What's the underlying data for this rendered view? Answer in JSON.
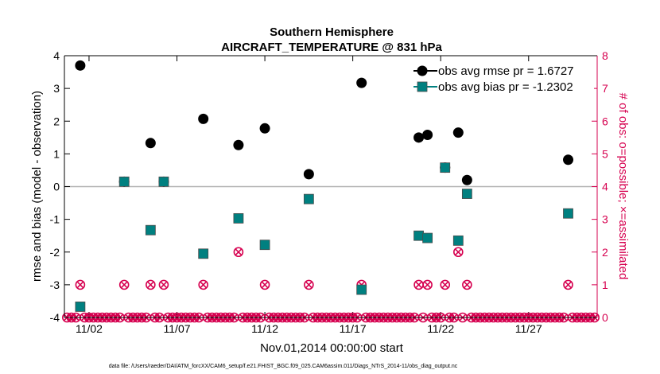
{
  "chart_data": {
    "type": "scatter",
    "title": "Southern Hemisphere",
    "subtitle": "AIRCRAFT_TEMPERATURE @ 831 hPa",
    "xlabel": "Nov.01,2014 00:00:00 start",
    "ylabel": "rmse and bias (model - observation)",
    "ylabel_right": "# of obs: o=possible; ×=assimilated",
    "footnote": "data file: /Users/raeder/DAI/ATM_forcXX/CAM6_setup/f.e21.FHIST_BGC.f09_025.CAM6assim.011/Diags_NTrS_2014-11/obs_diag_output.nc",
    "xlim": [
      0.6,
      30.9
    ],
    "ylim": [
      -4,
      4
    ],
    "ylim_right": [
      0,
      8
    ],
    "x_ticks": [
      {
        "value": 2,
        "label": "11/02"
      },
      {
        "value": 7,
        "label": "11/07"
      },
      {
        "value": 12,
        "label": "11/12"
      },
      {
        "value": 17,
        "label": "11/17"
      },
      {
        "value": 22,
        "label": "11/22"
      },
      {
        "value": 27,
        "label": "11/27"
      }
    ],
    "y_ticks": [
      "-4",
      "-3",
      "-2",
      "-1",
      "0",
      "1",
      "2",
      "3",
      "4"
    ],
    "y_ticks_right": [
      "0",
      "1",
      "2",
      "3",
      "4",
      "5",
      "6",
      "7",
      "8"
    ],
    "zero_line": 0,
    "legend": {
      "position": "top-right",
      "entries": [
        {
          "label": "obs avg rmse pr = 1.6727",
          "color": "#000000",
          "marker": "circle"
        },
        {
          "label": "obs avg bias pr = -1.2302",
          "color": "#008080",
          "marker": "square"
        }
      ]
    },
    "colors": {
      "rmse": "#000000",
      "bias": "#008080",
      "bias_edge": "#4a4a4a",
      "count": "#d6004f",
      "zero_line": "#b3b3b3"
    },
    "series": [
      {
        "name": "obs avg rmse pr = 1.6727",
        "x": [
          1.5,
          4.0,
          5.5,
          6.25,
          8.5,
          10.5,
          12.0,
          14.5,
          17.5,
          20.75,
          21.25,
          22.25,
          23.0,
          23.5,
          29.25
        ],
        "y": [
          3.7,
          0.15,
          1.33,
          0.15,
          2.07,
          1.27,
          1.78,
          0.38,
          3.17,
          1.5,
          1.58,
          0.58,
          1.65,
          0.2,
          0.82
        ]
      },
      {
        "name": "obs avg bias pr = -1.2302",
        "x": [
          1.5,
          4.0,
          5.5,
          6.25,
          8.5,
          10.5,
          12.0,
          14.5,
          17.5,
          20.75,
          21.25,
          22.25,
          23.0,
          23.5,
          29.25
        ],
        "y": [
          -3.67,
          0.15,
          -1.33,
          0.15,
          -2.05,
          -0.97,
          -1.78,
          -0.38,
          -3.15,
          -1.5,
          -1.57,
          0.58,
          -1.65,
          -0.22,
          -0.82
        ]
      },
      {
        "name": "# of obs possible/assimilated",
        "axis": "right",
        "x": [
          0.75,
          1.0,
          1.25,
          1.5,
          1.75,
          2.0,
          2.25,
          2.5,
          2.75,
          3.0,
          3.25,
          3.5,
          3.75,
          4.0,
          4.25,
          4.5,
          4.75,
          5.0,
          5.25,
          5.5,
          5.75,
          6.0,
          6.25,
          6.5,
          6.75,
          7.0,
          7.25,
          7.5,
          7.75,
          8.0,
          8.25,
          8.5,
          8.75,
          9.0,
          9.25,
          9.5,
          9.75,
          10.0,
          10.25,
          10.5,
          10.75,
          11.0,
          11.25,
          11.5,
          11.75,
          12.0,
          12.25,
          12.5,
          12.75,
          13.0,
          13.25,
          13.5,
          13.75,
          14.0,
          14.25,
          14.5,
          14.75,
          15.0,
          15.25,
          15.5,
          15.75,
          16.0,
          16.25,
          16.5,
          16.75,
          17.0,
          17.25,
          17.5,
          17.75,
          18.0,
          18.25,
          18.5,
          18.75,
          19.0,
          19.25,
          19.5,
          19.75,
          20.0,
          20.25,
          20.5,
          20.75,
          21.0,
          21.25,
          21.5,
          21.75,
          22.0,
          22.25,
          22.5,
          22.75,
          23.0,
          23.25,
          23.5,
          23.75,
          24.0,
          24.25,
          24.5,
          24.75,
          25.0,
          25.25,
          25.5,
          25.75,
          26.0,
          26.25,
          26.5,
          26.75,
          27.0,
          27.25,
          27.5,
          27.75,
          28.0,
          28.25,
          28.5,
          28.75,
          29.0,
          29.25,
          29.5,
          29.75,
          30.0,
          30.25,
          30.5,
          30.75
        ],
        "y": [
          0,
          0,
          0,
          1,
          0,
          0,
          0,
          0,
          0,
          0,
          0,
          0,
          0,
          1,
          0,
          0,
          0,
          0,
          0,
          1,
          0,
          0,
          1,
          0,
          0,
          0,
          0,
          0,
          0,
          0,
          0,
          1,
          0,
          0,
          0,
          0,
          0,
          0,
          0,
          2,
          0,
          0,
          0,
          0,
          0,
          1,
          0,
          0,
          0,
          0,
          0,
          0,
          0,
          0,
          0,
          1,
          0,
          0,
          0,
          0,
          0,
          0,
          0,
          0,
          0,
          0,
          0,
          1,
          0,
          0,
          0,
          0,
          0,
          0,
          0,
          0,
          0,
          0,
          0,
          0,
          1,
          0,
          1,
          0,
          0,
          0,
          1,
          0,
          0,
          2,
          0,
          1,
          0,
          0,
          0,
          0,
          0,
          0,
          0,
          0,
          0,
          0,
          0,
          0,
          0,
          0,
          0,
          0,
          0,
          0,
          0,
          0,
          0,
          0,
          1,
          0,
          0,
          0,
          0,
          0,
          0
        ]
      }
    ]
  }
}
